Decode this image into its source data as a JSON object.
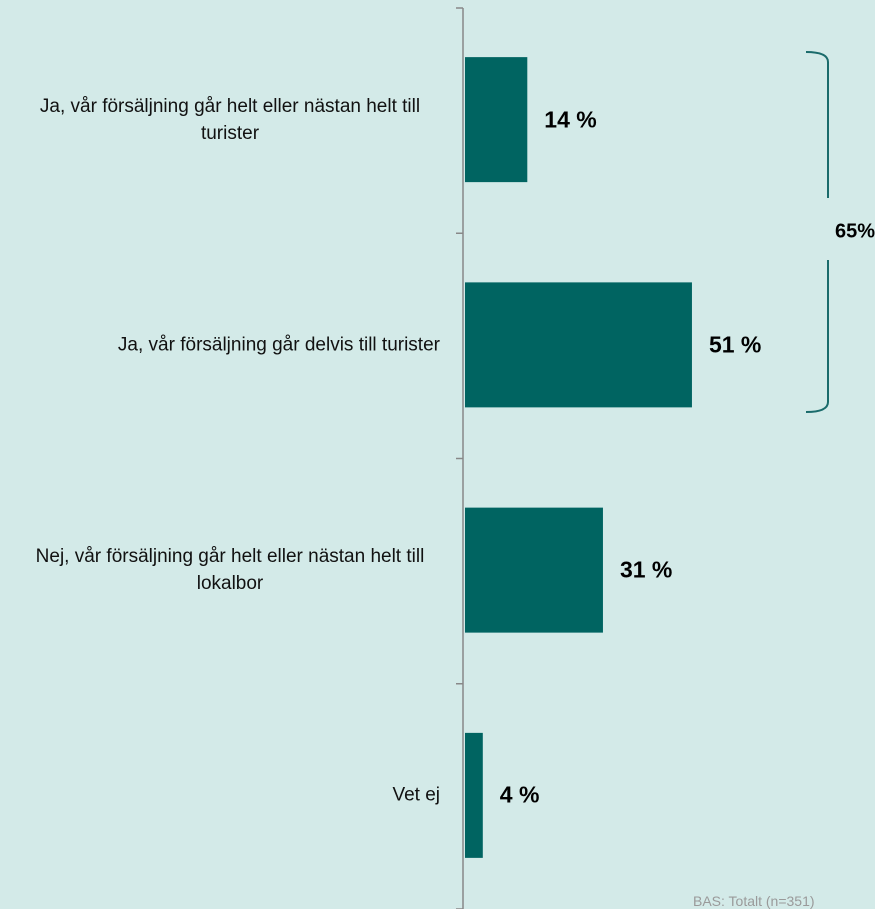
{
  "chart_data": {
    "type": "barh",
    "categories": [
      "Ja, vår försäljning går helt eller nästan helt till turister",
      "Ja, vår försäljning går delvis till turister",
      "Nej, vår försäljning går helt eller nästan helt till lokalbor",
      "Vet ej"
    ],
    "values": [
      14,
      51,
      31,
      4
    ],
    "value_labels": [
      "14 %",
      "51 %",
      "31 %",
      "4 %"
    ],
    "color": "#006461",
    "annotations": [
      {
        "text": "65%"
      }
    ],
    "footnote": "BAS: Totalt (n=351)"
  }
}
